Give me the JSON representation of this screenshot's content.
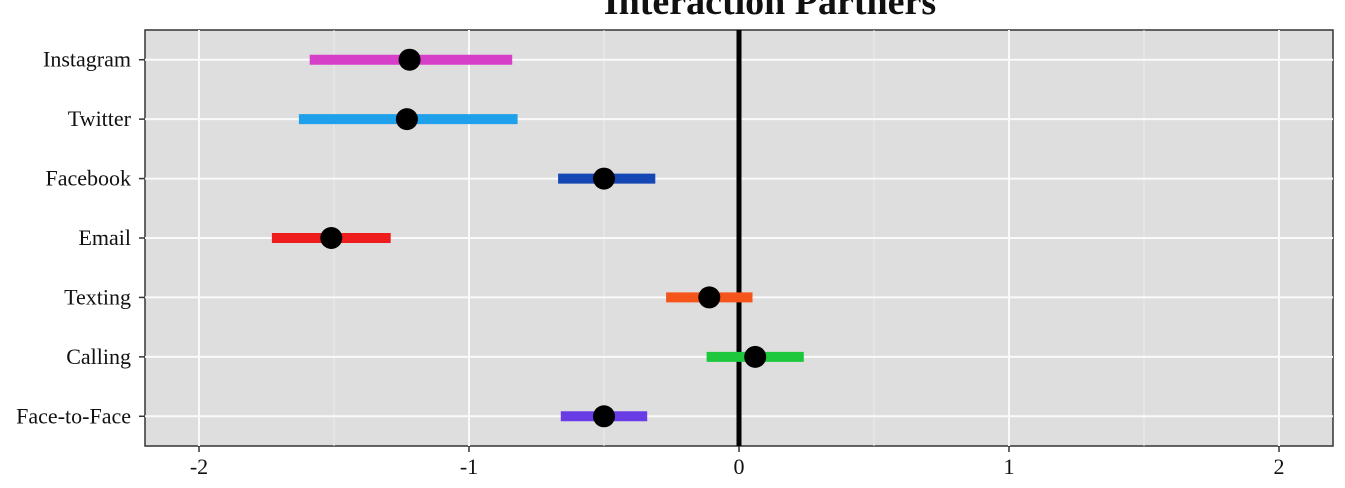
{
  "chart_data": {
    "type": "interval",
    "title": "Interaction Partners",
    "categories": [
      "Instagram",
      "Twitter",
      "Facebook",
      "Email",
      "Texting",
      "Calling",
      "Face-to-Face"
    ],
    "values": [
      -1.22,
      -1.23,
      -0.5,
      -1.51,
      -0.11,
      0.06,
      -0.5
    ],
    "lower": [
      -1.59,
      -1.63,
      -0.67,
      -1.73,
      -0.27,
      -0.12,
      -0.66
    ],
    "upper": [
      -0.84,
      -0.82,
      -0.31,
      -1.29,
      0.05,
      0.24,
      -0.34
    ],
    "colors": [
      "#d63fc8",
      "#1ea0ea",
      "#1446b4",
      "#ee1c1c",
      "#f5541a",
      "#1ec83c",
      "#6a3ce6"
    ],
    "point_color": "#000000",
    "xlim": [
      -2.2,
      2.2
    ],
    "xticks": [
      -2,
      -1,
      0,
      1,
      2
    ],
    "minor_xticks": [
      -1.5,
      -0.5,
      0.5,
      1.5
    ],
    "reference_line": 0,
    "grid": true
  }
}
